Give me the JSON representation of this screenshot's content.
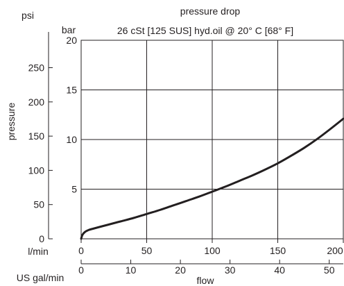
{
  "chart_data": {
    "type": "line",
    "title": "pressure drop",
    "subtitle": "26 cSt [125 SUS] hyd.oil @ 20° C [68° F]",
    "xlabel": "flow",
    "ylabel": "pressure",
    "x_unit_primary": "l/min",
    "x_unit_secondary": "US gal/min",
    "y_unit_primary": "bar",
    "y_unit_secondary": "psi",
    "xlim": [
      0,
      200
    ],
    "ylim": [
      0,
      20
    ],
    "x_ticks": [
      "0",
      "50",
      "100",
      "150",
      "200"
    ],
    "x_ticks_secondary": [
      "0",
      "10",
      "20",
      "30",
      "40",
      "50"
    ],
    "y_ticks": [
      "5",
      "10",
      "15",
      "20"
    ],
    "y_ticks_secondary": [
      "0",
      "50",
      "100",
      "150",
      "200",
      "250"
    ],
    "grid": true,
    "series": [
      {
        "x": [
          0,
          1,
          3,
          6,
          10,
          20,
          30,
          40,
          50,
          60,
          70,
          80,
          90,
          100,
          110,
          120,
          130,
          140,
          150,
          160,
          170,
          180,
          190,
          200
        ],
        "y": [
          0,
          0.4,
          0.7,
          0.9,
          1.05,
          1.4,
          1.75,
          2.1,
          2.5,
          2.9,
          3.35,
          3.8,
          4.25,
          4.75,
          5.25,
          5.8,
          6.35,
          6.95,
          7.6,
          8.35,
          9.15,
          10.05,
          11.05,
          12.1
        ],
        "color": "#231f20"
      }
    ]
  }
}
